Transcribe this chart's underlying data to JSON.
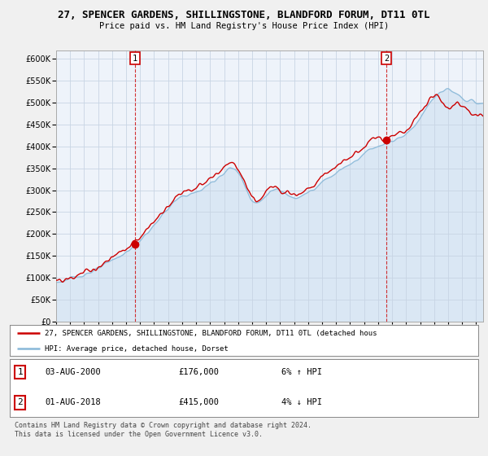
{
  "title": "27, SPENCER GARDENS, SHILLINGSTONE, BLANDFORD FORUM, DT11 0TL",
  "subtitle": "Price paid vs. HM Land Registry's House Price Index (HPI)",
  "ylim": [
    0,
    620000
  ],
  "yticks": [
    0,
    50000,
    100000,
    150000,
    200000,
    250000,
    300000,
    350000,
    400000,
    450000,
    500000,
    550000,
    600000
  ],
  "sale1_year": 2000.625,
  "sale1_price": 176000,
  "sale2_year": 2018.583,
  "sale2_price": 415000,
  "hpi_color": "#a0c0e0",
  "hpi_fill_color": "#d0e4f4",
  "price_color": "#cc0000",
  "legend_line1": "27, SPENCER GARDENS, SHILLINGSTONE, BLANDFORD FORUM, DT11 0TL (detached hous",
  "legend_line2": "HPI: Average price, detached house, Dorset",
  "footer1": "Contains HM Land Registry data © Crown copyright and database right 2024.",
  "footer2": "This data is licensed under the Open Government Licence v3.0.",
  "xstart": 1995,
  "xend": 2025.5
}
